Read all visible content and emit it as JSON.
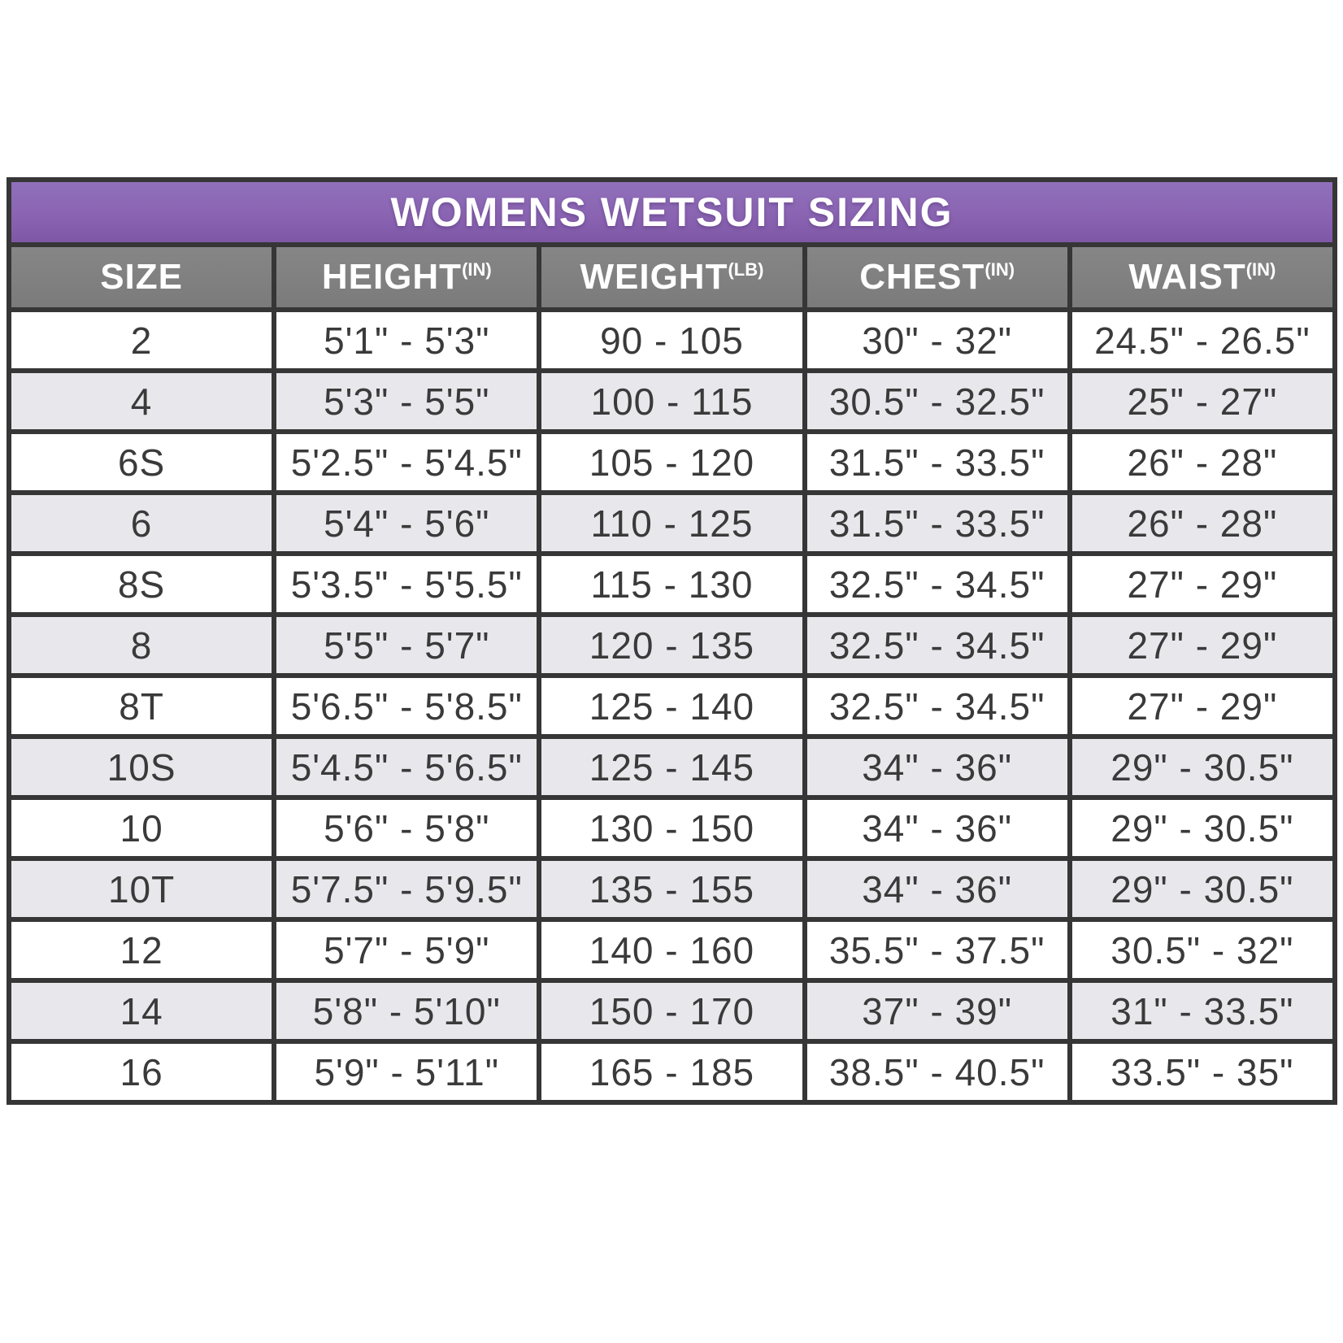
{
  "title": "WOMENS WETSUIT SIZING",
  "chart_data": {
    "type": "table",
    "title": "WOMENS WETSUIT SIZING",
    "columns": [
      {
        "label": "SIZE",
        "unit": ""
      },
      {
        "label": "HEIGHT",
        "unit": "(IN)"
      },
      {
        "label": "WEIGHT",
        "unit": "(LB)"
      },
      {
        "label": "CHEST",
        "unit": "(IN)"
      },
      {
        "label": "WAIST",
        "unit": "(IN)"
      }
    ],
    "rows": [
      [
        "2",
        "5'1\" - 5'3\"",
        "90 - 105",
        "30\" - 32\"",
        "24.5\" - 26.5\""
      ],
      [
        "4",
        "5'3\" - 5'5\"",
        "100 - 115",
        "30.5\" - 32.5\"",
        "25\" - 27\""
      ],
      [
        "6S",
        "5'2.5\" - 5'4.5\"",
        "105 - 120",
        "31.5\" - 33.5\"",
        "26\" - 28\""
      ],
      [
        "6",
        "5'4\" - 5'6\"",
        "110 - 125",
        "31.5\" - 33.5\"",
        "26\" - 28\""
      ],
      [
        "8S",
        "5'3.5\" - 5'5.5\"",
        "115 - 130",
        "32.5\" - 34.5\"",
        "27\" - 29\""
      ],
      [
        "8",
        "5'5\" - 5'7\"",
        "120 - 135",
        "32.5\" - 34.5\"",
        "27\" - 29\""
      ],
      [
        "8T",
        "5'6.5\" - 5'8.5\"",
        "125 - 140",
        "32.5\" - 34.5\"",
        "27\" - 29\""
      ],
      [
        "10S",
        "5'4.5\" - 5'6.5\"",
        "125 - 145",
        "34\" - 36\"",
        "29\" - 30.5\""
      ],
      [
        "10",
        "5'6\" - 5'8\"",
        "130 - 150",
        "34\" - 36\"",
        "29\" - 30.5\""
      ],
      [
        "10T",
        "5'7.5\" - 5'9.5\"",
        "135 - 155",
        "34\" - 36\"",
        "29\" - 30.5\""
      ],
      [
        "12",
        "5'7\" - 5'9\"",
        "140 - 160",
        "35.5\" - 37.5\"",
        "30.5\" - 32\""
      ],
      [
        "14",
        "5'8\" - 5'10\"",
        "150 - 170",
        "37\" - 39\"",
        "31\" - 33.5\""
      ],
      [
        "16",
        "5'9\" - 5'11\"",
        "165 - 185",
        "38.5\" - 40.5\"",
        "33.5\" - 35\""
      ]
    ]
  },
  "colors": {
    "purple": "#8a64b2",
    "header_gray": "#7b7b7b",
    "alt_row": "#e7e7ec",
    "border": "#363636",
    "text": "#3a3a3a",
    "title_text": "#ffffff"
  }
}
